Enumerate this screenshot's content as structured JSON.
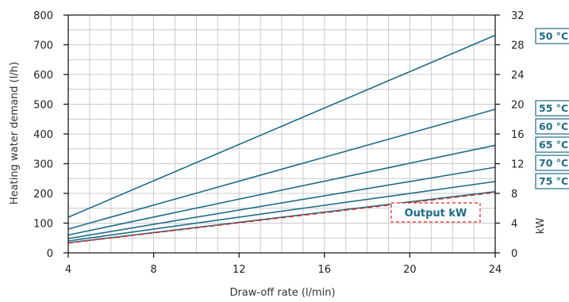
{
  "chart_data": {
    "type": "line",
    "xlabel": "Draw-off rate (l/min)",
    "ylabel": "Heating water demand (l/h)",
    "y2label": "kW",
    "x_ticks": [
      4,
      8,
      12,
      16,
      20,
      24
    ],
    "y_ticks": [
      0,
      100,
      200,
      300,
      400,
      500,
      600,
      700,
      800
    ],
    "y2_ticks": [
      0,
      4,
      8,
      12,
      16,
      20,
      24,
      28,
      32
    ],
    "xlim": [
      4,
      24
    ],
    "ylim": [
      0,
      800
    ],
    "y2lim": [
      0,
      32
    ],
    "grid": true,
    "series": [
      {
        "name": "50 °C",
        "x": [
          4,
          24
        ],
        "y": [
          120,
          732
        ]
      },
      {
        "name": "55 °C",
        "x": [
          4,
          24
        ],
        "y": [
          80,
          483
        ]
      },
      {
        "name": "60 °C",
        "x": [
          4,
          24
        ],
        "y": [
          60,
          362
        ]
      },
      {
        "name": "65 °C",
        "x": [
          4,
          24
        ],
        "y": [
          48,
          288
        ]
      },
      {
        "name": "70 °C",
        "x": [
          4,
          24
        ],
        "y": [
          40,
          240
        ]
      },
      {
        "name": "75 °C",
        "x": [
          4,
          24
        ],
        "y": [
          34,
          206
        ]
      },
      {
        "name": "Output kW",
        "x": [
          4,
          24
        ],
        "y": [
          33,
          203
        ]
      }
    ],
    "line_color": "#1f6c86",
    "output_color": "#e2231a",
    "label_color": "#1f6c86"
  }
}
